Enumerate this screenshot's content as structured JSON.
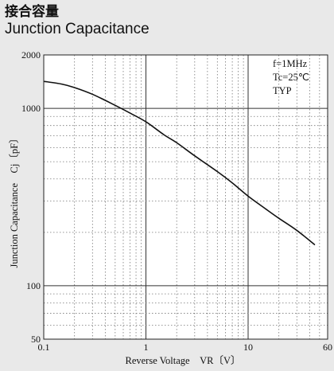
{
  "title": {
    "japanese": "接合容量",
    "english": "Junction Capacitance"
  },
  "chart_data": {
    "type": "line",
    "title": "Junction Capacitance",
    "xlabel": "Reverse Voltage　VR〔V〕",
    "ylabel": "Junction Capacitance　Cj〔pF〕",
    "x_scale": "log",
    "y_scale": "log",
    "xlim": [
      0.1,
      60
    ],
    "ylim": [
      50,
      2000
    ],
    "x_ticks": [
      {
        "value": 0.1,
        "label": "0.1"
      },
      {
        "value": 1,
        "label": "1"
      },
      {
        "value": 10,
        "label": "10"
      },
      {
        "value": 60,
        "label": "60"
      }
    ],
    "y_ticks": [
      {
        "value": 50,
        "label": "50"
      },
      {
        "value": 100,
        "label": "100"
      },
      {
        "value": 1000,
        "label": "1000"
      },
      {
        "value": 2000,
        "label": "2000"
      }
    ],
    "annotations": [
      "f=1MHz",
      "Tc=25℃",
      "TYP"
    ],
    "grid": true,
    "series": [
      {
        "x": [
          0.1,
          0.15,
          0.2,
          0.3,
          0.5,
          0.7,
          1,
          1.5,
          2,
          3,
          5,
          7,
          10,
          15,
          20,
          30,
          45
        ],
        "y": [
          1420,
          1370,
          1310,
          1200,
          1040,
          940,
          840,
          710,
          640,
          540,
          440,
          380,
          320,
          270,
          240,
          205,
          170
        ]
      }
    ]
  }
}
